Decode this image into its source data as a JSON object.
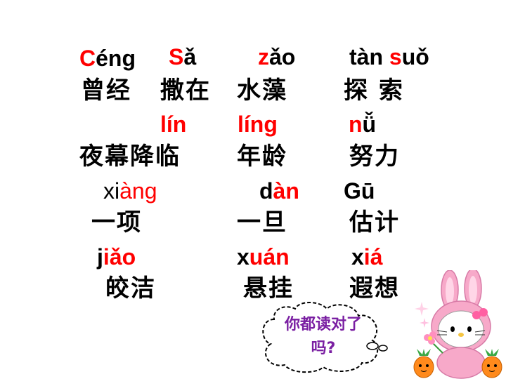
{
  "rows": {
    "r1": {
      "c1": {
        "hl": "C",
        "rest": "éng"
      },
      "c2": {
        "hl": "S",
        "rest": "ǎ"
      },
      "c3": {
        "hl": "z",
        "rest": "ǎo"
      },
      "c4": {
        "pre": "tàn ",
        "hl": "s",
        "rest": "uǒ"
      }
    },
    "r2": [
      "曾经",
      "撒在",
      "水藻",
      "探 索"
    ],
    "r3": {
      "c2": {
        "hl": "l",
        "rest": "ín"
      },
      "c3": {
        "hl": "l",
        "rest": "íng"
      },
      "c4": {
        "hl": "n",
        "rest": "ǚ"
      }
    },
    "r4": [
      "夜幕降临",
      "年龄",
      "努力"
    ],
    "r5": {
      "c1": {
        "pre": "xi",
        "hl": "àng"
      },
      "c3": {
        "hl": "d",
        "rest": "àn"
      },
      "c4": {
        "text": "Gū"
      }
    },
    "r6": [
      "一项",
      "一旦",
      "估计"
    ],
    "r7": {
      "c1": {
        "pre": "j",
        "hl": "iǎo"
      },
      "c3": {
        "pre": "x",
        "hl": "uán"
      },
      "c4": {
        "pre": "x",
        "hl": "iá"
      }
    },
    "r8": [
      "皎洁",
      "悬挂",
      "遐想"
    ]
  },
  "bubble": {
    "line1": "你都读对了",
    "line2": "吗?"
  },
  "colors": {
    "highlight": "#ff0000",
    "bubble_text": "#7a1fa2",
    "bunny_pink": "#f7a9c9"
  }
}
